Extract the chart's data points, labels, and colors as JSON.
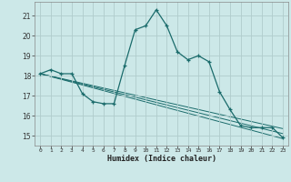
{
  "xlabel": "Humidex (Indice chaleur)",
  "xlim": [
    -0.5,
    23.5
  ],
  "ylim": [
    14.5,
    21.7
  ],
  "yticks": [
    15,
    16,
    17,
    18,
    19,
    20,
    21
  ],
  "xticks": [
    0,
    1,
    2,
    3,
    4,
    5,
    6,
    7,
    8,
    9,
    10,
    11,
    12,
    13,
    14,
    15,
    16,
    17,
    18,
    19,
    20,
    21,
    22,
    23
  ],
  "bg_color": "#cce8e8",
  "grid_color": "#b0cccc",
  "line_color": "#1a6b6b",
  "main_line": {
    "x": [
      0,
      1,
      2,
      3,
      4,
      5,
      6,
      7,
      8,
      9,
      10,
      11,
      12,
      13,
      14,
      15,
      16,
      17,
      18,
      19,
      20,
      21,
      22,
      23
    ],
    "y": [
      18.1,
      18.3,
      18.1,
      18.1,
      17.1,
      16.7,
      16.6,
      16.6,
      18.5,
      20.3,
      20.5,
      21.3,
      20.5,
      19.2,
      18.8,
      19.0,
      18.7,
      17.2,
      16.3,
      15.5,
      15.4,
      15.4,
      15.4,
      14.9
    ]
  },
  "trend_lines": [
    {
      "x": [
        0,
        23
      ],
      "y": [
        18.1,
        14.85
      ]
    },
    {
      "x": [
        0,
        23
      ],
      "y": [
        18.1,
        15.1
      ]
    },
    {
      "x": [
        0,
        23
      ],
      "y": [
        18.1,
        15.35
      ]
    }
  ]
}
